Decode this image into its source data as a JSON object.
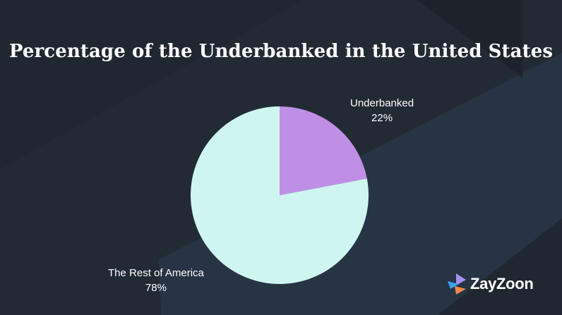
{
  "title": "Percentage of the Underbanked in the United States",
  "brand": {
    "name": "ZayZoon"
  },
  "colors": {
    "background": "#1f2730",
    "band": "#273444",
    "underbanked": "#bf8fe6",
    "rest": "#cff5f0",
    "text": "#ffffff",
    "logo_blue": "#3aa0ee",
    "logo_orange": "#ee8b4a",
    "logo_purple": "#a48ef0"
  },
  "chart_data": {
    "type": "pie",
    "start_angle_deg": 0,
    "direction": "clockwise",
    "slices": [
      {
        "label": "Underbanked",
        "value": 22,
        "value_label": "22%",
        "color": "#bf8fe6"
      },
      {
        "label": "The Rest of America",
        "value": 78,
        "value_label": "78%",
        "color": "#cff5f0"
      }
    ]
  }
}
